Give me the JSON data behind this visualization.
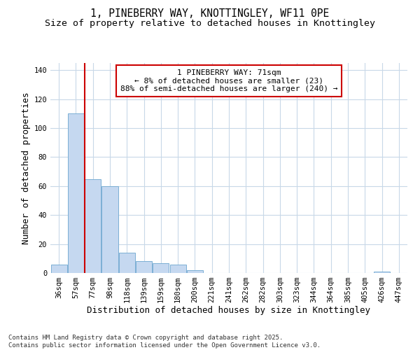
{
  "title_line1": "1, PINEBERRY WAY, KNOTTINGLEY, WF11 0PE",
  "title_line2": "Size of property relative to detached houses in Knottingley",
  "xlabel": "Distribution of detached houses by size in Knottingley",
  "ylabel": "Number of detached properties",
  "categories": [
    "36sqm",
    "57sqm",
    "77sqm",
    "98sqm",
    "118sqm",
    "139sqm",
    "159sqm",
    "180sqm",
    "200sqm",
    "221sqm",
    "241sqm",
    "262sqm",
    "282sqm",
    "303sqm",
    "323sqm",
    "344sqm",
    "364sqm",
    "385sqm",
    "405sqm",
    "426sqm",
    "447sqm"
  ],
  "values": [
    6,
    110,
    65,
    60,
    14,
    8,
    7,
    6,
    2,
    0,
    0,
    0,
    0,
    0,
    0,
    0,
    0,
    0,
    0,
    1,
    0
  ],
  "bar_color": "#c5d8f0",
  "bar_edge_color": "#7bafd4",
  "grid_color": "#c8d8e8",
  "bg_color": "#ffffff",
  "vline_color": "#cc0000",
  "vline_x": 1.5,
  "annotation_text": "1 PINEBERRY WAY: 71sqm\n← 8% of detached houses are smaller (23)\n88% of semi-detached houses are larger (240) →",
  "annotation_box_color": "#cc0000",
  "annotation_text_color": "#000000",
  "ylim": [
    0,
    145
  ],
  "yticks": [
    0,
    20,
    40,
    60,
    80,
    100,
    120,
    140
  ],
  "footnote": "Contains HM Land Registry data © Crown copyright and database right 2025.\nContains public sector information licensed under the Open Government Licence v3.0.",
  "title_fontsize": 10.5,
  "subtitle_fontsize": 9.5,
  "axis_label_fontsize": 9,
  "tick_fontsize": 7.5,
  "annotation_fontsize": 8
}
